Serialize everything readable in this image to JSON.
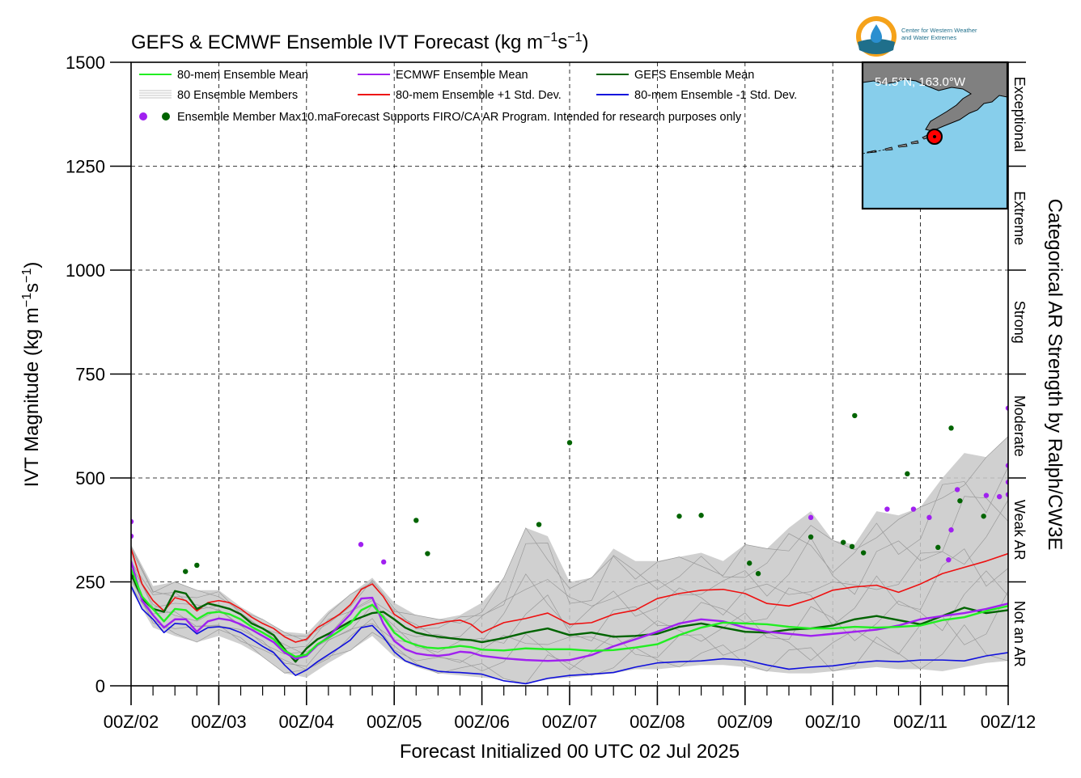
{
  "chart_data": {
    "type": "line",
    "title": "GEFS & ECMWF Ensemble IVT Forecast (kg m",
    "title_sup1": "−1",
    "title_mid": "s",
    "title_sup2": "−1",
    "title_end": ")",
    "ylabel": "IVT Magnitude (kg m",
    "ylabel_sup1": "−1",
    "ylabel_mid": "s",
    "ylabel_sup2": "−1",
    "ylabel_end": ")",
    "xlabel": "Forecast Initialized 00 UTC 02 Jul 2025",
    "right_label": "Categorical AR Strength by Ralph/CW3E",
    "ylim": [
      0,
      1500
    ],
    "yticks": [
      "0",
      "250",
      "500",
      "750",
      "1000",
      "1250",
      "1500"
    ],
    "xlim_days": [
      0,
      10
    ],
    "xticks": [
      "00Z/02",
      "00Z/03",
      "00Z/04",
      "00Z/05",
      "00Z/06",
      "00Z/07",
      "00Z/08",
      "00Z/09",
      "00Z/10",
      "00Z/11",
      "00Z/12"
    ],
    "grid": true,
    "categories": [
      {
        "label": "Not an AR",
        "range": [
          0,
          250
        ]
      },
      {
        "label": "Weak AR",
        "range": [
          250,
          500
        ]
      },
      {
        "label": "Moderate",
        "range": [
          500,
          750
        ]
      },
      {
        "label": "Strong",
        "range": [
          750,
          1000
        ]
      },
      {
        "label": "Extreme",
        "range": [
          1000,
          1250
        ]
      },
      {
        "label": "Exceptional",
        "range": [
          1250,
          1500
        ]
      }
    ],
    "legend": {
      "mean80": "80-mem Ensemble Mean",
      "ecmwf": "ECMWF Ensemble Mean",
      "gefs": "GEFS Ensemble Mean",
      "members": "80 Ensemble Members",
      "plus1": "80-mem Ensemble +1 Std. Dev.",
      "minus1": "80-mem Ensemble -1 Std. Dev.",
      "max10": "Ensemble Member Max10.ma",
      "disclaimer": "Forecast Supports FIRO/CA AR Program. Intended for research purposes only"
    },
    "colors": {
      "mean80": "#22ee22",
      "ecmwf": "#a020f0",
      "gefs": "#006400",
      "members": "#b0b0b0",
      "plus1": "#ee1111",
      "minus1": "#1010dd",
      "max_ecmwf": "#a020f0",
      "max_gefs": "#006400",
      "ocean": "#87ceeb",
      "land": "#808080"
    },
    "series": [
      {
        "name": "80-mem Ensemble Mean",
        "key": "mean80",
        "x": [
          0,
          0.125,
          0.25,
          0.375,
          0.5,
          0.625,
          0.75,
          0.875,
          1,
          1.125,
          1.25,
          1.375,
          1.5,
          1.625,
          1.75,
          1.875,
          2,
          2.125,
          2.25,
          2.375,
          2.5,
          2.625,
          2.75,
          2.875,
          3,
          3.125,
          3.25,
          3.375,
          3.5,
          3.625,
          3.75,
          3.875,
          4,
          4.25,
          4.5,
          4.75,
          5,
          5.25,
          5.5,
          5.75,
          6,
          6.25,
          6.5,
          6.75,
          7,
          7.25,
          7.5,
          7.75,
          8,
          8.25,
          8.5,
          8.75,
          9,
          9.25,
          9.5,
          9.75,
          10
        ],
        "y": [
          280,
          215,
          185,
          155,
          185,
          182,
          160,
          175,
          178,
          172,
          160,
          142,
          128,
          112,
          85,
          70,
          75,
          100,
          115,
          132,
          150,
          182,
          195,
          165,
          128,
          108,
          98,
          92,
          90,
          92,
          96,
          93,
          87,
          85,
          90,
          88,
          88,
          84,
          86,
          92,
          100,
          122,
          140,
          152,
          150,
          148,
          142,
          138,
          138,
          142,
          140,
          142,
          145,
          158,
          165,
          180,
          192
        ]
      },
      {
        "name": "ECMWF Ensemble Mean",
        "key": "ecmwf",
        "x": [
          0,
          0.125,
          0.25,
          0.375,
          0.5,
          0.625,
          0.75,
          0.875,
          1,
          1.125,
          1.25,
          1.375,
          1.5,
          1.625,
          1.75,
          1.875,
          2,
          2.125,
          2.25,
          2.375,
          2.5,
          2.625,
          2.75,
          2.875,
          3,
          3.125,
          3.25,
          3.375,
          3.5,
          3.625,
          3.75,
          3.875,
          4,
          4.25,
          4.5,
          4.75,
          5,
          5.25,
          5.5,
          5.75,
          6,
          6.25,
          6.5,
          6.75,
          7,
          7.25,
          7.5,
          7.75,
          8,
          8.25,
          8.5,
          8.75,
          9,
          9.25,
          9.5,
          9.75,
          10
        ],
        "y": [
          300,
          205,
          170,
          140,
          160,
          160,
          130,
          155,
          162,
          158,
          148,
          135,
          120,
          105,
          80,
          65,
          72,
          98,
          118,
          145,
          172,
          210,
          212,
          150,
          108,
          88,
          78,
          74,
          72,
          75,
          82,
          80,
          72,
          66,
          62,
          60,
          62,
          74,
          95,
          112,
          130,
          150,
          160,
          155,
          140,
          130,
          125,
          120,
          125,
          130,
          135,
          145,
          160,
          168,
          175,
          185,
          198
        ]
      },
      {
        "name": "GEFS Ensemble Mean",
        "key": "gefs",
        "x": [
          0,
          0.125,
          0.25,
          0.375,
          0.5,
          0.625,
          0.75,
          0.875,
          1,
          1.125,
          1.25,
          1.375,
          1.5,
          1.625,
          1.75,
          1.875,
          2,
          2.125,
          2.25,
          2.375,
          2.5,
          2.625,
          2.75,
          2.875,
          3,
          3.125,
          3.25,
          3.375,
          3.5,
          3.625,
          3.75,
          3.875,
          4,
          4.25,
          4.5,
          4.75,
          5,
          5.25,
          5.5,
          5.75,
          6,
          6.25,
          6.5,
          6.75,
          7,
          7.25,
          7.5,
          7.75,
          8,
          8.25,
          8.5,
          8.75,
          9,
          9.25,
          9.5,
          9.75,
          10
        ],
        "y": [
          270,
          210,
          185,
          178,
          228,
          222,
          185,
          198,
          192,
          185,
          172,
          150,
          138,
          122,
          88,
          58,
          90,
          112,
          125,
          140,
          155,
          165,
          175,
          178,
          160,
          140,
          128,
          122,
          118,
          115,
          112,
          110,
          105,
          115,
          128,
          138,
          122,
          128,
          118,
          120,
          125,
          142,
          150,
          140,
          130,
          128,
          135,
          138,
          145,
          160,
          168,
          158,
          148,
          168,
          188,
          175,
          182
        ]
      },
      {
        "name": "80-mem Ensemble +1 Std. Dev.",
        "key": "plus1",
        "x": [
          0,
          0.125,
          0.25,
          0.375,
          0.5,
          0.625,
          0.75,
          0.875,
          1,
          1.125,
          1.25,
          1.375,
          1.5,
          1.625,
          1.75,
          1.875,
          2,
          2.125,
          2.25,
          2.375,
          2.5,
          2.625,
          2.75,
          2.875,
          3,
          3.125,
          3.25,
          3.375,
          3.5,
          3.625,
          3.75,
          3.875,
          4,
          4.25,
          4.5,
          4.75,
          5,
          5.25,
          5.5,
          5.75,
          6,
          6.25,
          6.5,
          6.75,
          7,
          7.25,
          7.5,
          7.75,
          8,
          8.25,
          8.5,
          8.75,
          9,
          9.25,
          9.5,
          9.75,
          10
        ],
        "y": [
          330,
          245,
          205,
          180,
          212,
          205,
          180,
          200,
          205,
          200,
          185,
          165,
          150,
          138,
          118,
          105,
          112,
          140,
          155,
          172,
          195,
          232,
          245,
          215,
          172,
          155,
          140,
          145,
          150,
          155,
          158,
          148,
          128,
          152,
          162,
          175,
          148,
          152,
          172,
          182,
          210,
          222,
          230,
          232,
          222,
          198,
          192,
          208,
          230,
          238,
          242,
          225,
          245,
          270,
          285,
          300,
          318
        ]
      },
      {
        "name": "80-mem Ensemble -1 Std. Dev.",
        "key": "minus1",
        "x": [
          0,
          0.125,
          0.25,
          0.375,
          0.5,
          0.625,
          0.75,
          0.875,
          1,
          1.125,
          1.25,
          1.375,
          1.5,
          1.625,
          1.75,
          1.875,
          2,
          2.125,
          2.25,
          2.375,
          2.5,
          2.625,
          2.75,
          2.875,
          3,
          3.125,
          3.25,
          3.375,
          3.5,
          3.625,
          3.75,
          3.875,
          4,
          4.25,
          4.5,
          4.75,
          5,
          5.25,
          5.5,
          5.75,
          6,
          6.25,
          6.5,
          6.75,
          7,
          7.25,
          7.5,
          7.75,
          8,
          8.25,
          8.5,
          8.75,
          9,
          9.25,
          9.5,
          9.75,
          10
        ],
        "y": [
          240,
          185,
          160,
          128,
          150,
          148,
          125,
          140,
          142,
          138,
          128,
          112,
          95,
          80,
          50,
          25,
          38,
          58,
          75,
          92,
          110,
          140,
          145,
          118,
          82,
          60,
          50,
          42,
          35,
          33,
          32,
          30,
          28,
          12,
          5,
          18,
          25,
          28,
          32,
          45,
          55,
          58,
          60,
          65,
          62,
          50,
          40,
          45,
          48,
          55,
          60,
          58,
          62,
          62,
          60,
          72,
          80
        ]
      }
    ],
    "members_band": {
      "name": "80 Ensemble Members",
      "x": [
        0,
        0.25,
        0.5,
        0.75,
        1,
        1.25,
        1.5,
        1.75,
        2,
        2.25,
        2.5,
        2.75,
        3,
        3.25,
        3.5,
        3.75,
        4,
        4.25,
        4.5,
        4.75,
        5,
        5.25,
        5.5,
        5.75,
        6,
        6.25,
        6.5,
        6.75,
        7,
        7.25,
        7.5,
        7.75,
        8,
        8.25,
        8.5,
        8.75,
        9,
        9.25,
        9.5,
        9.75,
        10
      ],
      "low": [
        230,
        140,
        120,
        105,
        120,
        100,
        70,
        30,
        20,
        55,
        85,
        120,
        70,
        45,
        30,
        25,
        20,
        15,
        5,
        15,
        20,
        25,
        30,
        40,
        40,
        45,
        50,
        50,
        45,
        35,
        30,
        30,
        35,
        40,
        45,
        40,
        40,
        35,
        45,
        55,
        60
      ],
      "high": [
        340,
        240,
        250,
        230,
        230,
        190,
        160,
        130,
        125,
        180,
        220,
        260,
        200,
        170,
        160,
        170,
        200,
        260,
        380,
        360,
        250,
        260,
        330,
        300,
        300,
        310,
        320,
        300,
        340,
        330,
        380,
        420,
        350,
        340,
        420,
        410,
        430,
        500,
        560,
        550,
        600
      ]
    },
    "max_points": {
      "ecmwf": [
        [
          0,
          395
        ],
        [
          0,
          360
        ],
        [
          2.62,
          340
        ],
        [
          2.88,
          298
        ],
        [
          7.75,
          405
        ],
        [
          8.62,
          425
        ],
        [
          8.92,
          425
        ],
        [
          9.1,
          405
        ],
        [
          9.32,
          303
        ],
        [
          9.35,
          375
        ],
        [
          9.42,
          472
        ],
        [
          9.75,
          458
        ],
        [
          9.9,
          455
        ],
        [
          10,
          668
        ],
        [
          10,
          530
        ],
        [
          10,
          490
        ],
        [
          10,
          460
        ]
      ],
      "gefs": [
        [
          0,
          262
        ],
        [
          0.62,
          275
        ],
        [
          0.75,
          290
        ],
        [
          3.25,
          398
        ],
        [
          3.38,
          318
        ],
        [
          4.65,
          388
        ],
        [
          5,
          585
        ],
        [
          6.25,
          408
        ],
        [
          6.5,
          410
        ],
        [
          7.05,
          295
        ],
        [
          7.15,
          270
        ],
        [
          7.75,
          358
        ],
        [
          8.12,
          345
        ],
        [
          8.22,
          335
        ],
        [
          8.35,
          320
        ],
        [
          8.25,
          650
        ],
        [
          8.85,
          510
        ],
        [
          9.2,
          333
        ],
        [
          9.35,
          620
        ],
        [
          9.45,
          445
        ],
        [
          9.72,
          408
        ]
      ]
    }
  },
  "map_inset": {
    "coord_label": "54.5°N, 163.0°W",
    "logo_line1": "Center for Western Weather",
    "logo_line2": "and Water Extremes"
  }
}
